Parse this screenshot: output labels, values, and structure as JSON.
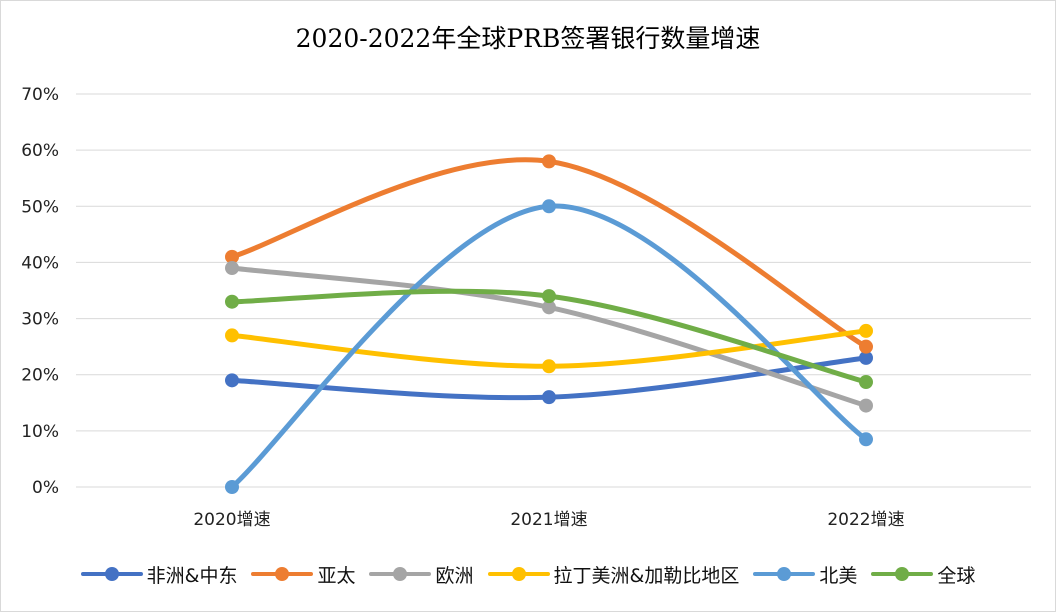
{
  "chart_data": {
    "type": "line",
    "title": "2020-2022年全球PRB签署银行数量增速",
    "categories": [
      "2020增速",
      "2021增速",
      "2022增速"
    ],
    "y_ticks": [
      "0%",
      "10%",
      "20%",
      "30%",
      "40%",
      "50%",
      "60%",
      "70%"
    ],
    "ylim": [
      0,
      0.7
    ],
    "grid": true,
    "smooth": true,
    "legend_position": "bottom",
    "series": [
      {
        "name": "非洲&中东",
        "color": "#4472C4",
        "values": [
          0.19,
          0.16,
          0.23
        ]
      },
      {
        "name": "亚太",
        "color": "#ED7D31",
        "values": [
          0.41,
          0.58,
          0.25
        ]
      },
      {
        "name": "欧洲",
        "color": "#A5A5A5",
        "values": [
          0.39,
          0.32,
          0.145
        ]
      },
      {
        "name": "拉丁美洲&加勒比地区",
        "color": "#FFC000",
        "values": [
          0.27,
          0.215,
          0.278
        ]
      },
      {
        "name": "北美",
        "color": "#5B9BD5",
        "values": [
          0.0,
          0.5,
          0.085
        ]
      },
      {
        "name": "全球",
        "color": "#70AD47",
        "values": [
          0.33,
          0.34,
          0.187
        ]
      }
    ]
  }
}
